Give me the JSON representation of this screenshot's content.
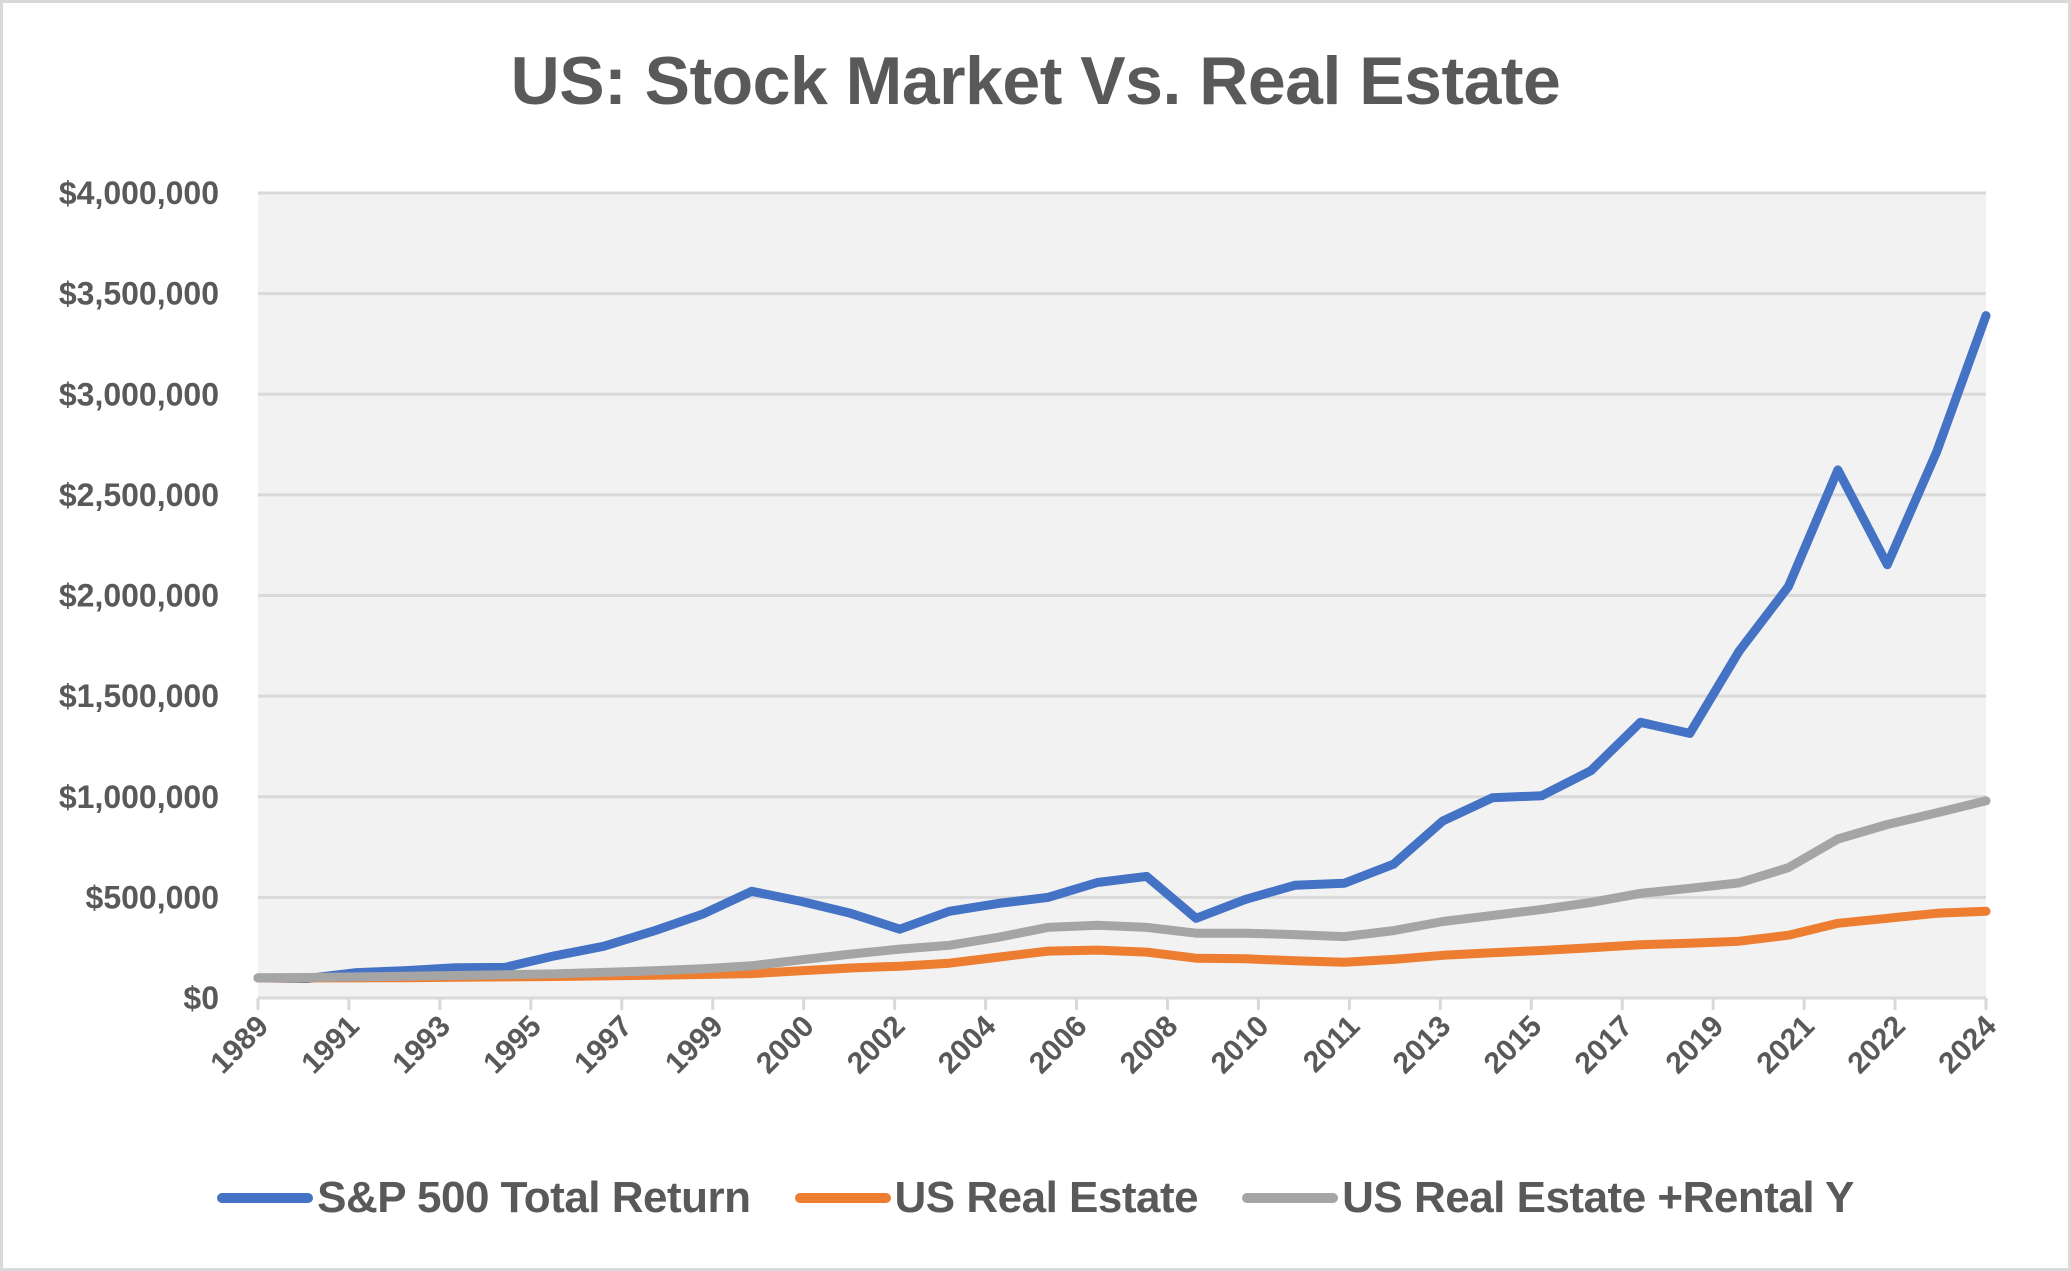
{
  "chart_data": {
    "type": "line",
    "title": "US: Stock Market Vs. Real Estate",
    "xlabel": "",
    "ylabel": "",
    "x": [
      1989,
      1990,
      1991,
      1992,
      1993,
      1994,
      1995,
      1996,
      1997,
      1998,
      1999,
      2000,
      2001,
      2002,
      2003,
      2004,
      2005,
      2006,
      2007,
      2008,
      2009,
      2010,
      2011,
      2012,
      2013,
      2014,
      2015,
      2016,
      2017,
      2018,
      2019,
      2020,
      2021,
      2022,
      2023,
      2024
    ],
    "x_tick_labels": [
      "1989",
      "1991",
      "1993",
      "1995",
      "1997",
      "1999",
      "2000",
      "2002",
      "2004",
      "2006",
      "2008",
      "2010",
      "2011",
      "2013",
      "2015",
      "2017",
      "2019",
      "2021",
      "2022",
      "2024"
    ],
    "y_tick_labels": [
      "$0",
      "$500,000",
      "$1,000,000",
      "$1,500,000",
      "$2,000,000",
      "$2,500,000",
      "$3,000,000",
      "$3,500,000",
      "$4,000,000"
    ],
    "y_ticks": [
      0,
      500000,
      1000000,
      1500000,
      2000000,
      2500000,
      3000000,
      3500000,
      4000000
    ],
    "ylim": [
      0,
      4000000
    ],
    "grid": "horizontal",
    "legend_position": "bottom",
    "series": [
      {
        "name": "S&P 500 Total Return",
        "color": "#4472c4",
        "values": [
          100000,
          97000,
          126000,
          136000,
          150000,
          152000,
          209000,
          257000,
          332000,
          416000,
          530000,
          480000,
          421000,
          342000,
          431000,
          470000,
          500000,
          574000,
          604000,
          396000,
          490000,
          560000,
          570000,
          665000,
          880000,
          995000,
          1005000,
          1130000,
          1370000,
          1315000,
          1723000,
          2045000,
          2624000,
          2153000,
          2713000,
          3391000
        ]
      },
      {
        "name": "US Real Estate",
        "color": "#ed7d31",
        "values": [
          100000,
          100000,
          100000,
          101000,
          103000,
          105000,
          107000,
          110000,
          113000,
          117000,
          121000,
          135000,
          149000,
          158000,
          173000,
          203000,
          233000,
          238000,
          228000,
          198000,
          195000,
          185000,
          178000,
          192000,
          212000,
          225000,
          236000,
          250000,
          265000,
          272000,
          282000,
          312000,
          371000,
          396000,
          421000,
          431000
        ]
      },
      {
        "name": "US Real Estate +Rental Y",
        "color": "#a5a5a5",
        "values": [
          100000,
          102000,
          105000,
          108000,
          112000,
          116000,
          120000,
          127000,
          135000,
          145000,
          160000,
          190000,
          218000,
          243000,
          262000,
          302000,
          351000,
          361000,
          351000,
          322000,
          322000,
          315000,
          305000,
          335000,
          380000,
          410000,
          440000,
          475000,
          520000,
          545000,
          572000,
          648000,
          790000,
          862000,
          920000,
          980000
        ]
      }
    ]
  },
  "colors": {
    "plot_background": "#f2f2f2",
    "gridline": "#d9d9d9",
    "text": "#595959",
    "border": "#d9d9d9"
  }
}
